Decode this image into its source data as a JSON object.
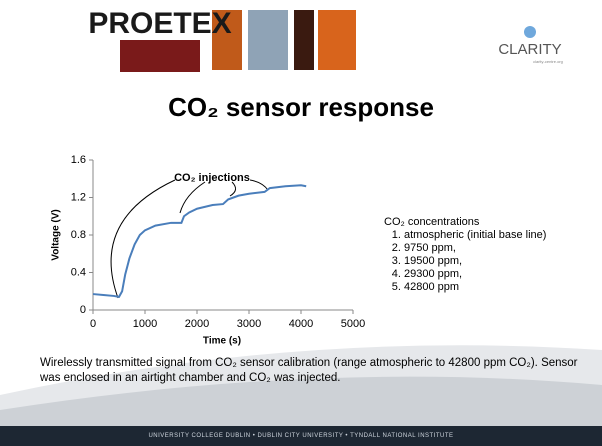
{
  "header": {
    "logo_left": "PROETEX",
    "logo_right": "CLARITY",
    "logo_right_sub": "clarity-centre.org"
  },
  "slide": {
    "title": "CO₂ sensor response",
    "caption": "Wirelessly transmitted signal from CO₂ sensor calibration (range atmospheric to 42800 ppm CO₂). Sensor was enclosed in an airtight chamber and CO₂ was injected.",
    "footer": "UNIVERSITY COLLEGE DUBLIN  •  DUBLIN CITY UNIVERSITY  •  TYNDALL NATIONAL INSTITUTE"
  },
  "notes": {
    "heading": "CO₂ concentrations",
    "items": [
      "atmospheric (initial base line)",
      "9750 ppm,",
      "19500 ppm,",
      "29300 ppm,",
      "42800 ppm"
    ]
  },
  "chart_data": {
    "type": "line",
    "x": [
      0,
      200,
      400,
      500,
      560,
      620,
      700,
      800,
      900,
      1000,
      1200,
      1500,
      1700,
      1750,
      1850,
      2000,
      2300,
      2500,
      2600,
      2800,
      3000,
      3300,
      3400,
      3700,
      4000,
      4100
    ],
    "values": [
      0.17,
      0.16,
      0.15,
      0.14,
      0.2,
      0.38,
      0.55,
      0.7,
      0.8,
      0.85,
      0.9,
      0.93,
      0.93,
      1.0,
      1.04,
      1.08,
      1.12,
      1.13,
      1.18,
      1.22,
      1.24,
      1.26,
      1.3,
      1.32,
      1.33,
      1.32
    ],
    "color": "#4a7ebb",
    "xlabel": "Time (s)",
    "ylabel": "Voltage (V)",
    "annotation": "CO₂ injections",
    "xlim": [
      0,
      5000
    ],
    "xticks": [
      0,
      1000,
      2000,
      3000,
      4000,
      5000
    ],
    "ylim": [
      0,
      1.6
    ],
    "yticks": [
      0,
      0.4,
      0.8,
      1.2,
      1.6
    ]
  }
}
